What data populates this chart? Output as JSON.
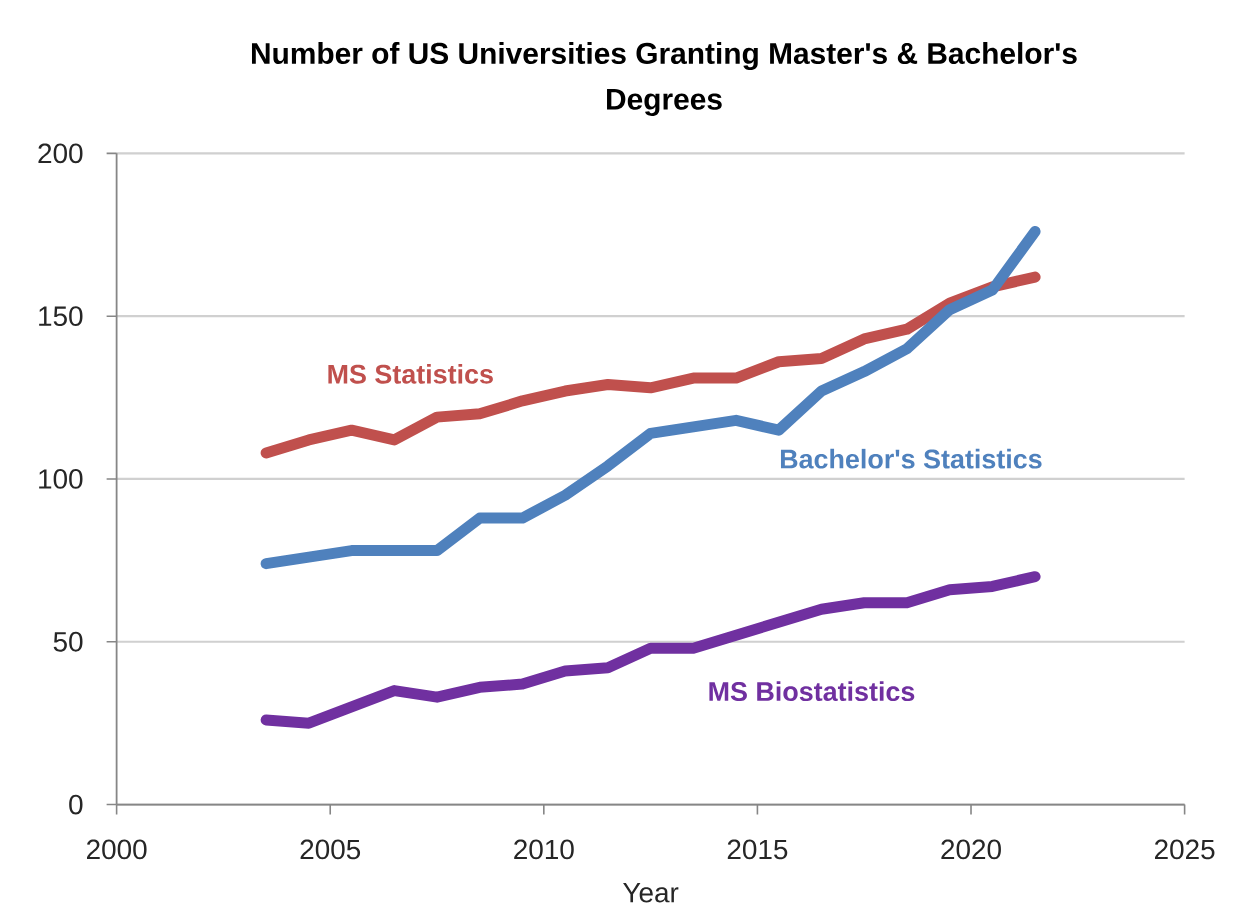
{
  "chart_data": {
    "type": "line",
    "title": "Number of US Universities Granting Master's & Bachelor's Degrees",
    "xlabel": "Year",
    "x": [
      2003.5,
      2004.5,
      2005.5,
      2006.5,
      2007.5,
      2008.5,
      2009.5,
      2010.5,
      2011.5,
      2012.5,
      2013.5,
      2014.5,
      2015.5,
      2016.5,
      2017.5,
      2018.5,
      2019.5,
      2020.5,
      2021.5
    ],
    "xlim": [
      2000,
      2025
    ],
    "xticks": [
      2000,
      2005,
      2010,
      2015,
      2020,
      2025
    ],
    "ylim": [
      0,
      200
    ],
    "yticks": [
      0,
      50,
      100,
      150,
      200
    ],
    "grid": "y",
    "series": [
      {
        "name": "MS Statistics",
        "color": "#c0504d",
        "values": [
          108,
          112,
          115,
          112,
          119,
          120,
          124,
          127,
          129,
          128,
          131,
          131,
          136,
          137,
          143,
          146,
          154,
          159,
          162
        ]
      },
      {
        "name": "Bachelor's Statistics",
        "color": "#4f81bd",
        "values": [
          74,
          76,
          78,
          78,
          78,
          88,
          88,
          95,
          104,
          114,
          116,
          118,
          115,
          127,
          133,
          140,
          152,
          158,
          176
        ]
      },
      {
        "name": "MS Biostatistics",
        "color": "#7030a0",
        "values": [
          26,
          25,
          30,
          35,
          33,
          36,
          37,
          41,
          42,
          48,
          48,
          52,
          56,
          60,
          62,
          62,
          66,
          67,
          70
        ]
      }
    ]
  }
}
